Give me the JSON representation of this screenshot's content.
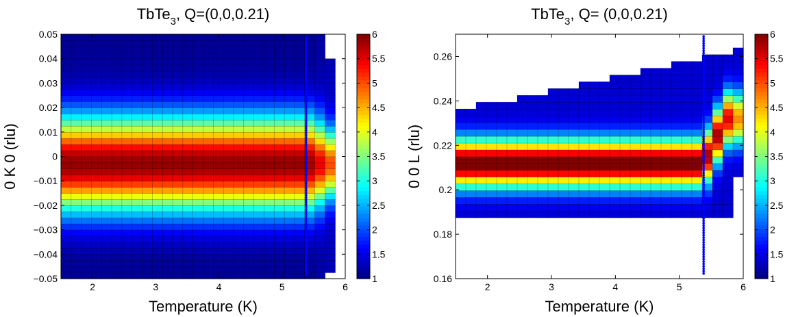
{
  "chart_data": [
    {
      "type": "heatmap",
      "title_main": "TbTe",
      "title_sub": "3",
      "title_rest": ", Q=(0,0,0.21)",
      "xlabel": "Temperature (K)",
      "ylabel": "0 K 0 (rlu)",
      "xlim": [
        1.5,
        6
      ],
      "ylim": [
        -0.05,
        0.05
      ],
      "xticks": [
        "2",
        "3",
        "4",
        "5",
        "6"
      ],
      "xtick_values": [
        2,
        3,
        4,
        5,
        6
      ],
      "yticks": [
        "-0.05",
        "-0.04",
        "-0.03",
        "-0.02",
        "-0.01",
        "0",
        "0.01",
        "0.02",
        "0.03",
        "0.04",
        "0.05"
      ],
      "ytick_values": [
        -0.05,
        -0.04,
        -0.03,
        -0.02,
        -0.01,
        0,
        0.01,
        0.02,
        0.03,
        0.04,
        0.05
      ],
      "colorbar_ticks": [
        "1",
        "1.5",
        "2",
        "2.5",
        "3",
        "3.5",
        "4",
        "4.5",
        "5",
        "5.5",
        "6"
      ],
      "colorbar_values": [
        1,
        1.5,
        2,
        2.5,
        3,
        3.5,
        4,
        4.5,
        5,
        5.5,
        6
      ],
      "clim": [
        1,
        6
      ],
      "colormap": "jet",
      "peak_center": -0.003,
      "peak_width": 0.019,
      "transition_temperature": 5.38,
      "marker_line_x": 5.38,
      "marker_line_color": "#0000ff"
    },
    {
      "type": "heatmap",
      "title_main": "TbTe",
      "title_sub": "3",
      "title_rest": ", Q= (0,0,0.21)",
      "xlabel": "Temperature (K)",
      "ylabel": "0 0 L (rlu)",
      "xlim": [
        1.5,
        6
      ],
      "ylim": [
        0.16,
        0.27
      ],
      "xticks": [
        "2",
        "3",
        "4",
        "5",
        "6"
      ],
      "xtick_values": [
        2,
        3,
        4,
        5,
        6
      ],
      "yticks": [
        "0.16",
        "0.18",
        "0.2",
        "0.22",
        "0.24",
        "0.26"
      ],
      "ytick_values": [
        0.16,
        0.18,
        0.2,
        0.22,
        0.24,
        0.26
      ],
      "colorbar_ticks": [
        "1",
        "1.5",
        "2",
        "2.5",
        "3",
        "3.5",
        "4",
        "4.5",
        "5",
        "5.5",
        "6"
      ],
      "colorbar_values": [
        1,
        1.5,
        2,
        2.5,
        3,
        3.5,
        4,
        4.5,
        5,
        5.5,
        6
      ],
      "clim": [
        1,
        6
      ],
      "colormap": "jet",
      "peak_center": 0.212,
      "peak_width": 0.0105,
      "high_t_peak_center": 0.232,
      "transition_temperature": 5.38,
      "data_lower_edge": 0.187,
      "data_upper_edge": {
        "T": [
          1.5,
          1.85,
          2.3,
          2.75,
          3.2,
          3.6,
          4.0,
          4.4,
          4.8,
          5.25,
          5.65,
          6.0
        ],
        "L": [
          0.236,
          0.238,
          0.24,
          0.243,
          0.245,
          0.248,
          0.251,
          0.253,
          0.256,
          0.259,
          0.262,
          0.263
        ]
      },
      "marker_line_x": 5.38,
      "marker_line_color": "#0000ff"
    }
  ]
}
